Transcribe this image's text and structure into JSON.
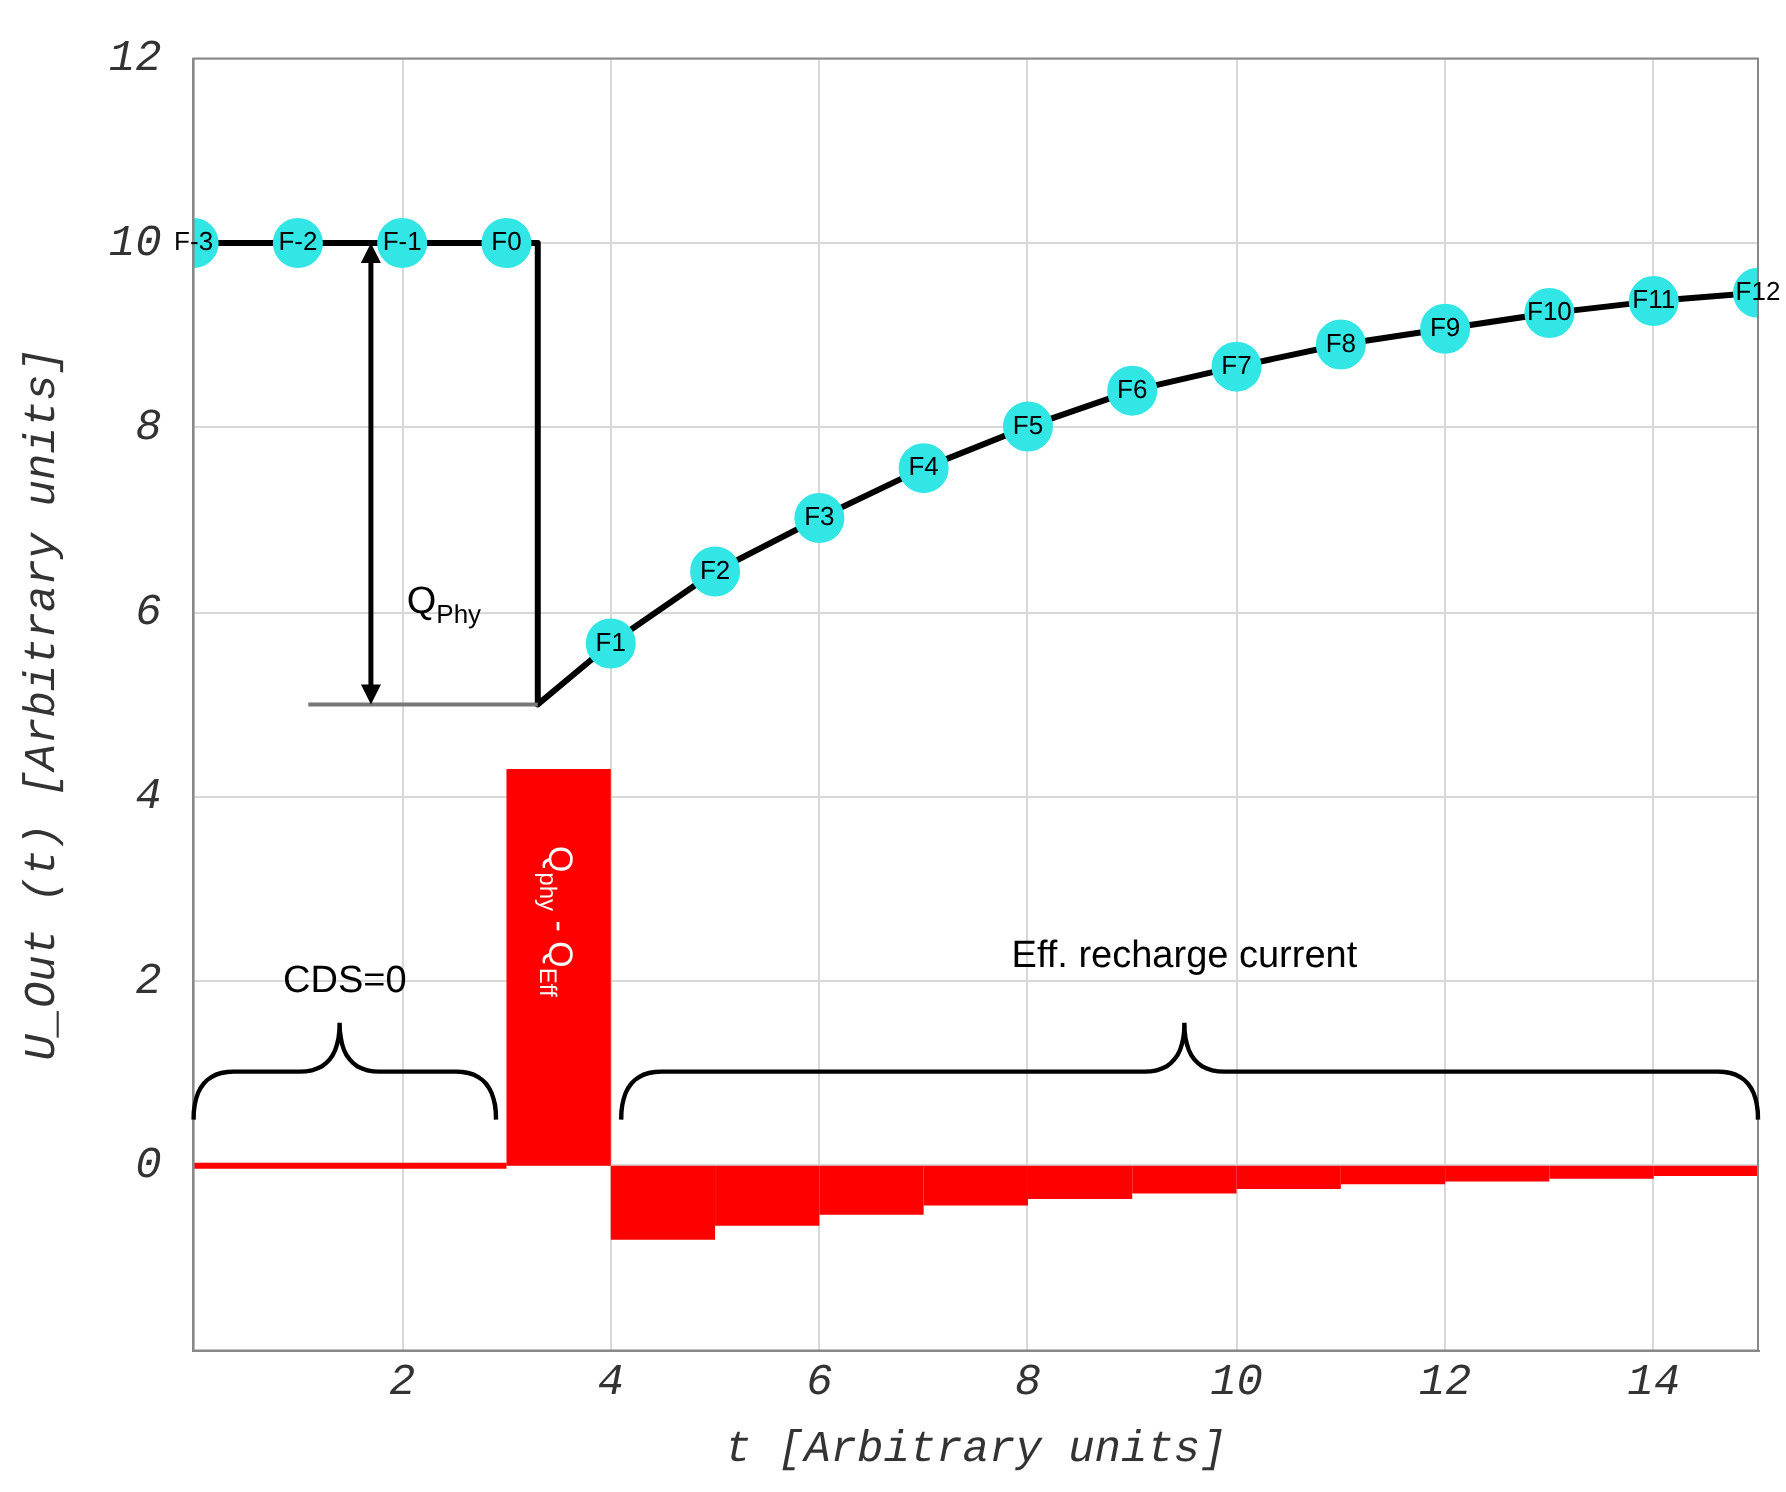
{
  "chart_data": {
    "type": "line",
    "xlabel": "t [Arbitrary units]",
    "ylabel": "U_Out (t) [Arbitrary units]",
    "xlim": [
      0,
      15
    ],
    "xticks": [
      2,
      4,
      6,
      8,
      10,
      12,
      14
    ],
    "ylim": [
      -2,
      12
    ],
    "yticks": [
      0,
      2,
      4,
      6,
      8,
      10,
      12
    ],
    "grid": true,
    "series": [
      {
        "type": "histogram",
        "color": "#ff0000",
        "bins": [
          0,
          3,
          4,
          5,
          6,
          7,
          8,
          9,
          10,
          11,
          12,
          13,
          14,
          15
        ],
        "values": [
          0,
          4.3,
          -0.8,
          -0.65,
          -0.53,
          -0.43,
          -0.36,
          -0.3,
          -0.25,
          -0.2,
          -0.17,
          -0.14,
          -0.11
        ]
      },
      {
        "type": "line",
        "color": "#000000",
        "marker": "none",
        "x": [
          0,
          1,
          2,
          3,
          3.3,
          3.3,
          4,
          5,
          6,
          7,
          8,
          9,
          10,
          11,
          12,
          13,
          14,
          15
        ],
        "values": [
          10,
          10,
          10,
          10,
          10,
          5,
          5.66,
          6.44,
          7.02,
          7.56,
          8.01,
          8.4,
          8.66,
          8.9,
          9.07,
          9.24,
          9.37,
          9.46
        ]
      },
      {
        "type": "scatter",
        "color": "#33e6e6",
        "marker": "circle",
        "x": [
          0,
          1,
          2,
          3,
          4,
          5,
          6,
          7,
          8,
          9,
          10,
          11,
          12,
          13,
          14,
          15
        ],
        "values": [
          10,
          10,
          10,
          10,
          5.66,
          6.44,
          7.02,
          7.56,
          8.01,
          8.4,
          8.66,
          8.9,
          9.07,
          9.24,
          9.37,
          9.46
        ]
      }
    ],
    "annotations": [
      {
        "text": "F-3",
        "x": 0,
        "y": 10
      },
      {
        "text": "F-2",
        "x": 1,
        "y": 10
      },
      {
        "text": "F-1",
        "x": 2,
        "y": 10
      },
      {
        "text": "F0",
        "x": 3,
        "y": 10
      },
      {
        "text": "F1",
        "x": 4,
        "y": 5.66
      },
      {
        "text": "F2",
        "x": 5,
        "y": 6.44
      },
      {
        "text": "F3",
        "x": 6,
        "y": 7.02
      },
      {
        "text": "F4",
        "x": 7,
        "y": 7.56
      },
      {
        "text": "F5",
        "x": 8,
        "y": 8.01
      },
      {
        "text": "F6",
        "x": 9,
        "y": 8.4
      },
      {
        "text": "F7",
        "x": 10,
        "y": 8.66
      },
      {
        "text": "F8",
        "x": 11,
        "y": 8.9
      },
      {
        "text": "F9",
        "x": 12,
        "y": 9.07
      },
      {
        "text": "F10",
        "x": 13,
        "y": 9.24
      },
      {
        "text": "F11",
        "x": 14,
        "y": 9.37
      },
      {
        "text": "F12",
        "x": 15,
        "y": 9.46
      },
      "Q$_{Phy}$",
      "Q$_{phy}$ - Q$_{Eff}$",
      "CDS=0",
      "Eff. recharge current"
    ]
  }
}
